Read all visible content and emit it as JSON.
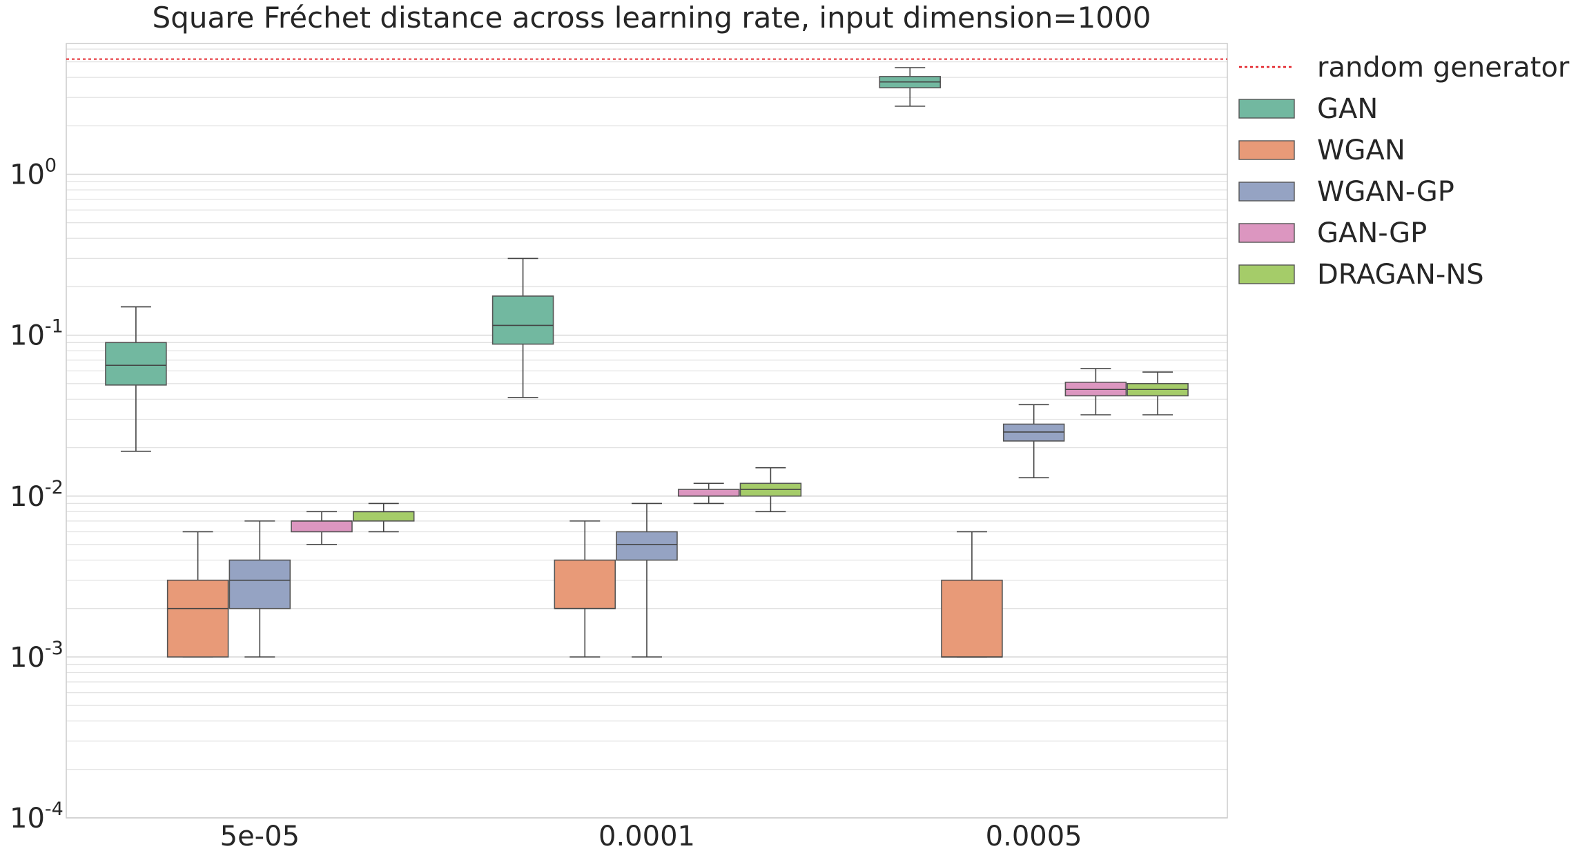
{
  "chart_data": {
    "type": "box",
    "title": "Square Fréchet distance across learning rate, input dimension=1000",
    "xlabel": "",
    "ylabel": "",
    "yscale": "log",
    "ylim": [
      0.0001,
      6.5
    ],
    "y_tick_labels": [
      {
        "value": 0.0001,
        "base": "10",
        "exp": "-4"
      },
      {
        "value": 0.001,
        "base": "10",
        "exp": "-3"
      },
      {
        "value": 0.01,
        "base": "10",
        "exp": "-2"
      },
      {
        "value": 0.1,
        "base": "10",
        "exp": "-1"
      },
      {
        "value": 1,
        "base": "10",
        "exp": "0"
      }
    ],
    "categories": [
      "5e-05",
      "0.0001",
      "0.0005"
    ],
    "reference_line": {
      "name": "random generator",
      "value": 5.2,
      "color": "#e3242b",
      "style": "dotted"
    },
    "series": [
      {
        "name": "GAN",
        "color": "#72b8a0",
        "boxes": [
          {
            "whislo": 0.019,
            "q1": 0.049,
            "med": 0.065,
            "q3": 0.09,
            "whishi": 0.15
          },
          {
            "whislo": 0.041,
            "q1": 0.088,
            "med": 0.115,
            "q3": 0.175,
            "whishi": 0.3
          },
          {
            "whislo": 2.65,
            "q1": 3.45,
            "med": 3.75,
            "q3": 4.05,
            "whishi": 4.6
          }
        ]
      },
      {
        "name": "WGAN",
        "color": "#e89a78",
        "boxes": [
          {
            "whislo": 0.001,
            "q1": 0.001,
            "med": 0.002,
            "q3": 0.003,
            "whishi": 0.006
          },
          {
            "whislo": 0.001,
            "q1": 0.002,
            "med": 0.002,
            "q3": 0.004,
            "whishi": 0.007
          },
          {
            "whislo": 0.001,
            "q1": 0.001,
            "med": 0.001,
            "q3": 0.003,
            "whishi": 0.006
          }
        ]
      },
      {
        "name": "WGAN-GP",
        "color": "#95a3c3",
        "boxes": [
          {
            "whislo": 0.001,
            "q1": 0.002,
            "med": 0.003,
            "q3": 0.004,
            "whishi": 0.007
          },
          {
            "whislo": 0.001,
            "q1": 0.004,
            "med": 0.005,
            "q3": 0.006,
            "whishi": 0.009
          },
          {
            "whislo": 0.013,
            "q1": 0.022,
            "med": 0.025,
            "q3": 0.028,
            "whishi": 0.037
          }
        ]
      },
      {
        "name": "GAN-GP",
        "color": "#dc96c0",
        "boxes": [
          {
            "whislo": 0.005,
            "q1": 0.006,
            "med": 0.007,
            "q3": 0.007,
            "whishi": 0.008
          },
          {
            "whislo": 0.009,
            "q1": 0.01,
            "med": 0.01,
            "q3": 0.011,
            "whishi": 0.012
          },
          {
            "whislo": 0.032,
            "q1": 0.042,
            "med": 0.046,
            "q3": 0.051,
            "whishi": 0.062
          }
        ]
      },
      {
        "name": "DRAGAN-NS",
        "color": "#a5cc69",
        "boxes": [
          {
            "whislo": 0.006,
            "q1": 0.007,
            "med": 0.008,
            "q3": 0.008,
            "whishi": 0.009
          },
          {
            "whislo": 0.008,
            "q1": 0.01,
            "med": 0.011,
            "q3": 0.012,
            "whishi": 0.015
          },
          {
            "whislo": 0.032,
            "q1": 0.042,
            "med": 0.046,
            "q3": 0.05,
            "whishi": 0.059
          }
        ]
      }
    ],
    "grid": true,
    "legend": "outside-right-top"
  }
}
